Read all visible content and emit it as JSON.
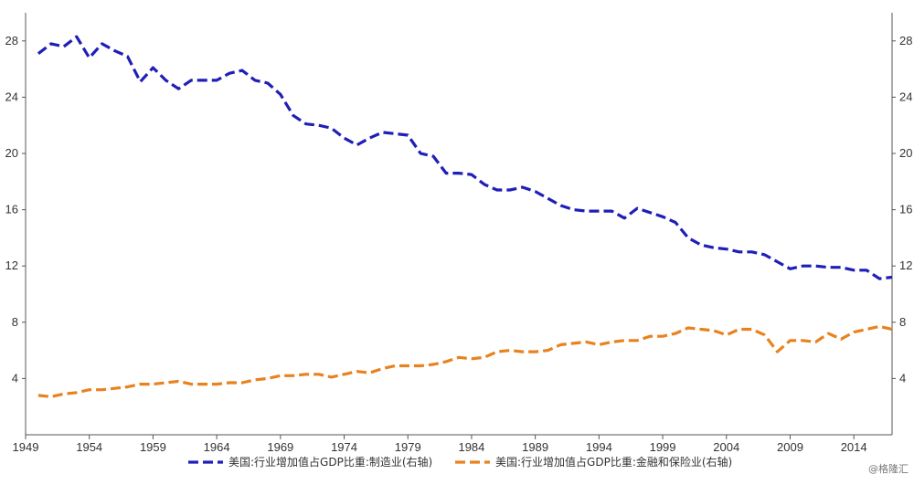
{
  "watermark": "@格隆汇",
  "chart_data": {
    "type": "line",
    "title": "",
    "xlabel": "",
    "ylabel": "",
    "xlim": [
      1949,
      2017
    ],
    "ylim": [
      0,
      30
    ],
    "x_ticks": [
      "1949",
      "1954",
      "1959",
      "1964",
      "1969",
      "1974",
      "1979",
      "1984",
      "1989",
      "1994",
      "1999",
      "2004",
      "2009",
      "2014"
    ],
    "y_ticks_left": [
      "4",
      "8",
      "12",
      "16",
      "20",
      "24",
      "28"
    ],
    "y_ticks_right": [
      "4",
      "8",
      "12",
      "16",
      "20",
      "24",
      "28"
    ],
    "grid": false,
    "legend_position": "bottom",
    "x": [
      1950,
      1951,
      1952,
      1953,
      1954,
      1955,
      1956,
      1957,
      1958,
      1959,
      1960,
      1961,
      1962,
      1963,
      1964,
      1965,
      1966,
      1967,
      1968,
      1969,
      1970,
      1971,
      1972,
      1973,
      1974,
      1975,
      1976,
      1977,
      1978,
      1979,
      1980,
      1981,
      1982,
      1983,
      1984,
      1985,
      1986,
      1987,
      1988,
      1989,
      1990,
      1991,
      1992,
      1993,
      1994,
      1995,
      1996,
      1997,
      1998,
      1999,
      2000,
      2001,
      2002,
      2003,
      2004,
      2005,
      2006,
      2007,
      2008,
      2009,
      2010,
      2011,
      2012,
      2013,
      2014,
      2015,
      2016,
      2017
    ],
    "series": [
      {
        "name": "美国:行业增加值占GDP比重:制造业(右轴)",
        "color": "#1f1fb8",
        "style": "dashed",
        "values": [
          27.1,
          27.8,
          27.6,
          28.3,
          26.8,
          27.8,
          27.3,
          26.9,
          25.1,
          26.1,
          25.2,
          24.6,
          25.2,
          25.2,
          25.2,
          25.7,
          25.9,
          25.2,
          25.0,
          24.2,
          22.7,
          22.1,
          22.0,
          21.8,
          21.1,
          20.6,
          21.1,
          21.5,
          21.4,
          21.3,
          20.0,
          19.8,
          18.6,
          18.6,
          18.5,
          17.8,
          17.4,
          17.4,
          17.6,
          17.3,
          16.8,
          16.3,
          16.0,
          15.9,
          15.9,
          15.9,
          15.4,
          16.1,
          15.8,
          15.5,
          15.1,
          14.0,
          13.5,
          13.3,
          13.2,
          13.0,
          13.0,
          12.8,
          12.3,
          11.8,
          12.0,
          12.0,
          11.9,
          11.9,
          11.7,
          11.7,
          11.1,
          11.2
        ]
      },
      {
        "name": "美国:行业增加值占GDP比重:金融和保险业(右轴)",
        "color": "#e8821e",
        "style": "dashed",
        "values": [
          2.8,
          2.7,
          2.9,
          3.0,
          3.2,
          3.2,
          3.3,
          3.4,
          3.6,
          3.6,
          3.7,
          3.8,
          3.6,
          3.6,
          3.6,
          3.7,
          3.7,
          3.9,
          4.0,
          4.2,
          4.2,
          4.3,
          4.3,
          4.1,
          4.3,
          4.5,
          4.4,
          4.7,
          4.9,
          4.9,
          4.9,
          5.0,
          5.2,
          5.5,
          5.4,
          5.5,
          5.9,
          6.0,
          5.9,
          5.9,
          6.0,
          6.4,
          6.5,
          6.6,
          6.4,
          6.6,
          6.7,
          6.7,
          7.0,
          7.0,
          7.2,
          7.6,
          7.5,
          7.4,
          7.1,
          7.5,
          7.5,
          7.1,
          5.9,
          6.7,
          6.7,
          6.6,
          7.2,
          6.8,
          7.3,
          7.5,
          7.7,
          7.5
        ]
      }
    ]
  }
}
